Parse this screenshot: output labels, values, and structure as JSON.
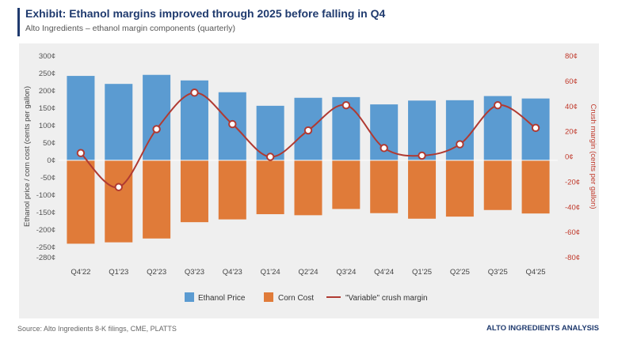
{
  "header": {
    "title": "Exhibit: Ethanol margins improved through 2025 before falling in Q4",
    "subtitle": "Alto Ingredients – ethanol margin components (quarterly)"
  },
  "footer": {
    "source": "Source: Alto Ingredients 8-K filings, CME, PLATTS",
    "brand": "ALTO INGREDIENTS ANALYSIS"
  },
  "colors": {
    "ethanol": "#5b9bd1",
    "corn": "#e07b39",
    "margin": "#b03a32",
    "title": "#1f3a6e",
    "plot_bg": "#efefef"
  },
  "chart_data": {
    "type": "bar",
    "categories": [
      "Q4'22",
      "Q1'23",
      "Q2'23",
      "Q3'23",
      "Q4'23",
      "Q1'24",
      "Q2'24",
      "Q3'24",
      "Q4'24",
      "Q1'25",
      "Q2'25",
      "Q3'25",
      "Q4'25"
    ],
    "series": [
      {
        "name": "Ethanol Price",
        "axis": "left",
        "type": "bar",
        "values": [
          243,
          220,
          246,
          230,
          196,
          157,
          180,
          182,
          161,
          172,
          173,
          185,
          178
        ]
      },
      {
        "name": "Corn Cost",
        "axis": "left",
        "type": "bar",
        "values": [
          -240,
          -236,
          -225,
          -178,
          -170,
          -155,
          -158,
          -140,
          -152,
          -168,
          -162,
          -143,
          -153
        ]
      },
      {
        "name": "\"Variable\" crush margin",
        "axis": "right",
        "type": "line",
        "values": [
          3,
          -24,
          22,
          51,
          26,
          0,
          21,
          41,
          7,
          1,
          10,
          41,
          23
        ]
      }
    ],
    "left_axis": {
      "label": "Ethanol price / corn cost (cents per gallon)",
      "ticks": [
        300,
        250,
        200,
        150,
        100,
        50,
        0,
        -50,
        -100,
        -150,
        -200,
        -250,
        -280
      ],
      "tick_labels": [
        "300¢",
        "250¢",
        "200¢",
        "150¢",
        "100¢",
        "50¢",
        "0¢",
        "-50¢",
        "-100¢",
        "-150¢",
        "-200¢",
        "-250¢",
        "-280¢"
      ],
      "range": [
        -280,
        300
      ]
    },
    "right_axis": {
      "label": "Crush margin (cents per gallon)",
      "ticks": [
        80,
        60,
        40,
        20,
        0,
        -20,
        -40,
        -60,
        -80
      ],
      "tick_labels": [
        "80¢",
        "60¢",
        "40¢",
        "20¢",
        "0¢",
        "-20¢",
        "-40¢",
        "-60¢",
        "-80¢"
      ],
      "range": [
        -80,
        80
      ]
    },
    "legend": {
      "position": "bottom",
      "items": [
        "Ethanol Price",
        "Corn Cost",
        "\"Variable\" crush margin"
      ]
    },
    "grid": false
  }
}
